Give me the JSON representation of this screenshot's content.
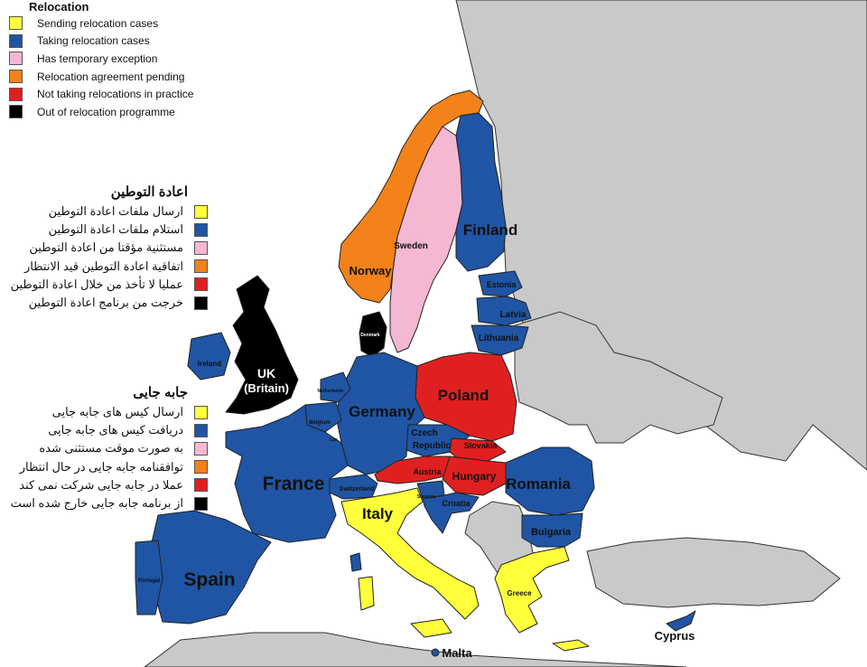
{
  "colors": {
    "sea": "#ffffff",
    "background_land": "#c9c9c9",
    "sending": "#ffff3b",
    "taking": "#1f55a4",
    "temporary_exception": "#f5b8d3",
    "agreement_pending": "#f28219",
    "not_taking": "#e02020",
    "out": "#000000"
  },
  "legends": {
    "en": {
      "title": "Relocation",
      "items": [
        {
          "label": "Sending relocation cases",
          "color": "#ffff3b"
        },
        {
          "label": "Taking relocation cases",
          "color": "#1f55a4"
        },
        {
          "label": "Has temporary exception",
          "color": "#f5b8d3"
        },
        {
          "label": "Relocation agreement pending",
          "color": "#f28219"
        },
        {
          "label": "Not taking relocations in practice",
          "color": "#e02020"
        },
        {
          "label": "Out of relocation programme",
          "color": "#000000"
        }
      ]
    },
    "ar": {
      "title": "اعادة التوطين",
      "items": [
        {
          "label": "ارسال ملفات اعادة التوطين",
          "color": "#ffff3b"
        },
        {
          "label": "استلام ملفات اعادة التوطين",
          "color": "#1f55a4"
        },
        {
          "label": "مستثنية مؤقتا من اعادة التوطين",
          "color": "#f5b8d3"
        },
        {
          "label": "اتفاقية اعادة التوطين قيد الانتظار",
          "color": "#f28219"
        },
        {
          "label": "عمليا لا تأخذ من خلال اعادة التوطين",
          "color": "#e02020"
        },
        {
          "label": "خرجت من برنامج اعادة التوطين",
          "color": "#000000"
        }
      ]
    },
    "fa": {
      "title": "جابه جایی",
      "items": [
        {
          "label": "ارسال کیس های جابه جایی",
          "color": "#ffff3b"
        },
        {
          "label": "دریافت کیس های جابه جایی",
          "color": "#1f55a4"
        },
        {
          "label": "به صورت موقت مستثنی شده",
          "color": "#f5b8d3"
        },
        {
          "label": "توافقنامه جابه جایی در حال انتظار",
          "color": "#f28219"
        },
        {
          "label": "عملا در جابه جایی شرکت نمی کند",
          "color": "#e02020"
        },
        {
          "label": "از برنامه جابه جایی خارج شده است",
          "color": "#000000"
        }
      ]
    }
  },
  "countries": {
    "uk": "UK",
    "uk_sub": "(Britain)",
    "ireland": "Ireland",
    "norway": "Norway",
    "sweden": "Sweden",
    "finland": "Finland",
    "denmark": "Denmark",
    "estonia": "Estonia",
    "latvia": "Latvia",
    "lithuania": "Lithuania",
    "poland": "Poland",
    "germany": "Germany",
    "netherlands": "Netherlands",
    "belgium": "Belgium",
    "luxembourg": "Lux.",
    "france": "France",
    "spain": "Spain",
    "portugal": "Portugal",
    "switzerland": "Switzerland",
    "italy": "Italy",
    "czech_1": "Czech",
    "czech_2": "Republic",
    "slovakia": "Slovakia",
    "austria": "Austria",
    "hungary": "Hungary",
    "slovenia": "Slovenia",
    "croatia": "Croatia",
    "romania": "Romania",
    "bulgaria": "Bulgaria",
    "greece": "Greece",
    "cyprus": "Cyprus",
    "malta": "Malta"
  }
}
